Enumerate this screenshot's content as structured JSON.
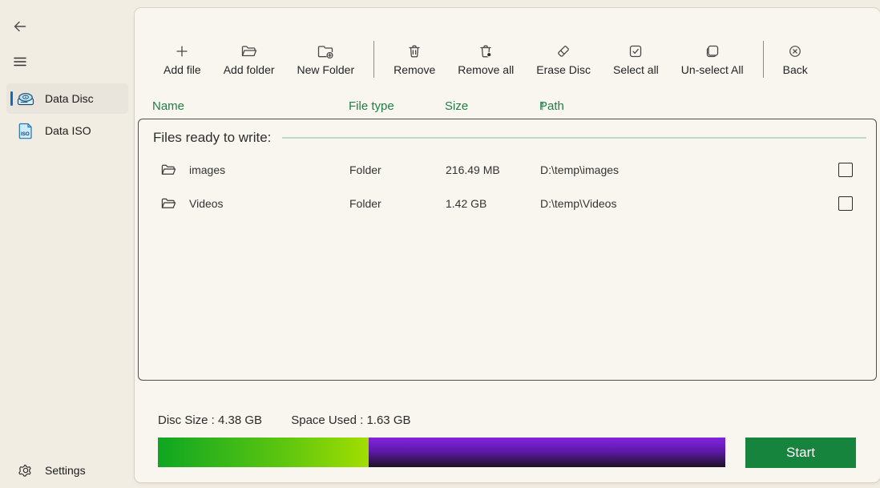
{
  "sidebar": {
    "items": [
      {
        "label": "Data Disc",
        "selected": true
      },
      {
        "label": "Data ISO",
        "selected": false
      }
    ],
    "settings_label": "Settings"
  },
  "toolbar": {
    "items": [
      {
        "label": "Add file"
      },
      {
        "label": "Add folder"
      },
      {
        "label": "New Folder"
      },
      {
        "label": "Remove"
      },
      {
        "label": "Remove all"
      },
      {
        "label": "Erase Disc"
      },
      {
        "label": "Select all"
      },
      {
        "label": "Un-select All"
      },
      {
        "label": "Back"
      }
    ]
  },
  "columns": {
    "name": "Name",
    "file_type": "File type",
    "size": "Size",
    "path": "Path",
    "sort_arrow": "↑"
  },
  "files_panel": {
    "legend": "Files ready to write:",
    "rows": [
      {
        "name": "images",
        "type": "Folder",
        "size": "216.49 MB",
        "path": "D:\\temp\\images",
        "checked": false
      },
      {
        "name": "Videos",
        "type": "Folder",
        "size": "1.42 GB",
        "path": "D:\\temp\\Videos",
        "checked": false
      }
    ]
  },
  "footer": {
    "disc_size_label": "Disc Size : 4.38 GB",
    "space_used_label": "Space Used : 1.63 GB",
    "used_percent": 37.2,
    "start_label": "Start"
  },
  "colors": {
    "accent_blue": "#0f6cbd",
    "header_green": "#1f7e46",
    "start_green": "#17843d",
    "progress_green_start": "#0ea622",
    "progress_green_end": "#a2de00",
    "progress_purple_top": "#8324df",
    "progress_purple_bottom": "#1e1126",
    "window_bg": "#f2ede3",
    "card_bg": "#f9f6ef"
  }
}
